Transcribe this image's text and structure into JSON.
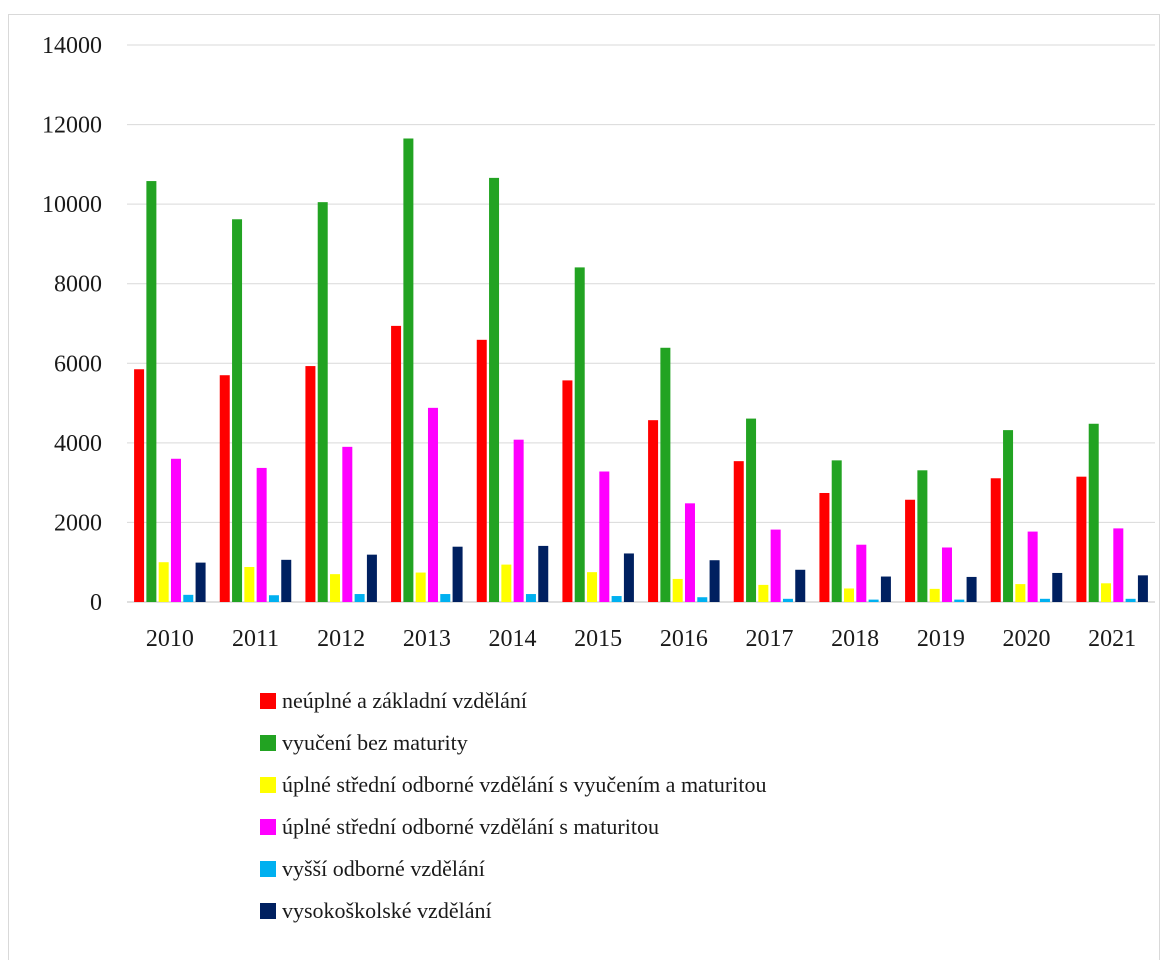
{
  "chart_data": {
    "type": "bar",
    "categories": [
      "2010",
      "2011",
      "2012",
      "2013",
      "2014",
      "2015",
      "2016",
      "2017",
      "2018",
      "2019",
      "2020",
      "2021"
    ],
    "series": [
      {
        "name": "neúplné a základní vzdělání",
        "color": "#ff0000",
        "values": [
          5850,
          5700,
          5930,
          6940,
          6590,
          5570,
          4570,
          3540,
          2740,
          2570,
          3110,
          3150
        ]
      },
      {
        "name": "vyučení bez maturity",
        "color": "#22a322",
        "values": [
          10580,
          9620,
          10050,
          11650,
          10660,
          8410,
          6390,
          4610,
          3560,
          3310,
          4320,
          4480
        ]
      },
      {
        "name": "úplné střední odborné vzdělání s vyučením a maturitou",
        "color": "#ffff00",
        "values": [
          1000,
          880,
          700,
          740,
          940,
          750,
          580,
          430,
          340,
          330,
          450,
          470
        ]
      },
      {
        "name": "úplné střední odborné vzdělání s maturitou",
        "color": "#ff00ff",
        "values": [
          3600,
          3370,
          3900,
          4880,
          4080,
          3280,
          2480,
          1820,
          1440,
          1370,
          1770,
          1850
        ]
      },
      {
        "name": "vyšší odborné vzdělání",
        "color": "#00b0f0",
        "values": [
          180,
          170,
          200,
          200,
          200,
          150,
          120,
          80,
          60,
          60,
          80,
          80
        ]
      },
      {
        "name": "vysokoškolské vzdělání",
        "color": "#002060",
        "values": [
          990,
          1060,
          1190,
          1390,
          1410,
          1220,
          1050,
          810,
          640,
          630,
          730,
          670
        ]
      }
    ],
    "yticks": [
      "0",
      "2000",
      "4000",
      "6000",
      "8000",
      "10000",
      "12000",
      "14000"
    ],
    "ylim": [
      0,
      14000
    ],
    "grid": true,
    "legend_position": "bottom"
  }
}
